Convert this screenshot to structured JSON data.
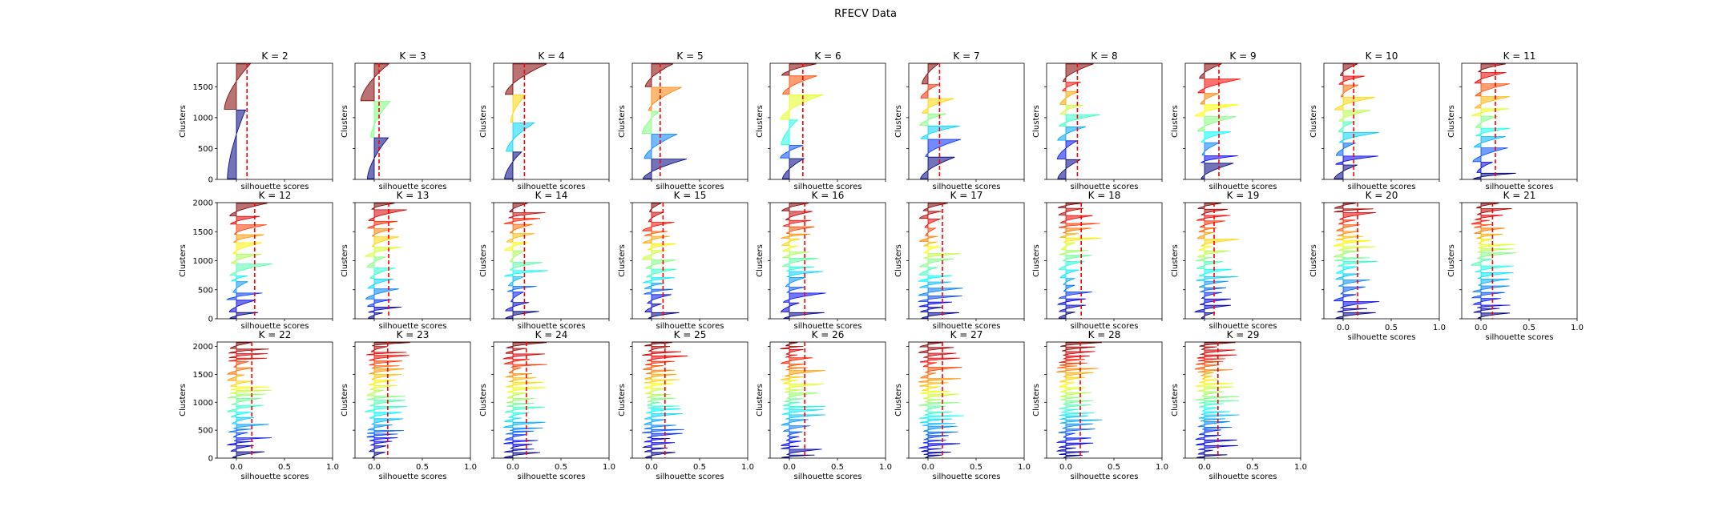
{
  "figure": {
    "suptitle": "RFECV Data"
  },
  "chart_data": {
    "type": "area",
    "description_kind": "silhouette plot grid",
    "xlabel": "silhouette scores",
    "ylabel": "Clusters",
    "xlim": [
      -0.2,
      1.0
    ],
    "x_ticks": [
      "0.0",
      "0.5",
      "1.0"
    ],
    "x_tick_values": [
      0.0,
      0.5,
      1.0
    ],
    "panels": [
      {
        "k": 2,
        "title": "K = 2",
        "ymax": 1880,
        "y_ticks": [
          0,
          500,
          1000,
          1500
        ],
        "mean_score": 0.11
      },
      {
        "k": 3,
        "title": "K = 3",
        "ymax": 1880,
        "y_ticks": [
          0,
          500,
          1000,
          1500
        ],
        "mean_score": 0.05
      },
      {
        "k": 4,
        "title": "K = 4",
        "ymax": 1880,
        "y_ticks": [
          0,
          500,
          1000,
          1500
        ],
        "mean_score": 0.12
      },
      {
        "k": 5,
        "title": "K = 5",
        "ymax": 1880,
        "y_ticks": [
          0,
          500,
          1000,
          1500
        ],
        "mean_score": 0.09
      },
      {
        "k": 6,
        "title": "K = 6",
        "ymax": 1880,
        "y_ticks": [
          0,
          500,
          1000,
          1500
        ],
        "mean_score": 0.14
      },
      {
        "k": 7,
        "title": "K = 7",
        "ymax": 1880,
        "y_ticks": [
          0,
          500,
          1000,
          1500
        ],
        "mean_score": 0.12
      },
      {
        "k": 8,
        "title": "K = 8",
        "ymax": 1880,
        "y_ticks": [
          0,
          500,
          1000,
          1500
        ],
        "mean_score": 0.12
      },
      {
        "k": 9,
        "title": "K = 9",
        "ymax": 1880,
        "y_ticks": [
          0,
          500,
          1000,
          1500
        ],
        "mean_score": 0.15
      },
      {
        "k": 10,
        "title": "K = 10",
        "ymax": 1880,
        "y_ticks": [
          0,
          500,
          1000,
          1500
        ],
        "mean_score": 0.11
      },
      {
        "k": 11,
        "title": "K = 11",
        "ymax": 1880,
        "y_ticks": [
          0,
          500,
          1000,
          1500
        ],
        "mean_score": 0.15
      },
      {
        "k": 12,
        "title": "K = 12",
        "ymax": 2000,
        "y_ticks": [
          0,
          500,
          1000,
          1500,
          2000
        ],
        "mean_score": 0.19
      },
      {
        "k": 13,
        "title": "K = 13",
        "ymax": 2000,
        "y_ticks": [
          0,
          500,
          1000,
          1500,
          2000
        ],
        "mean_score": 0.15
      },
      {
        "k": 14,
        "title": "K = 14",
        "ymax": 2000,
        "y_ticks": [
          0,
          500,
          1000,
          1500,
          2000
        ],
        "mean_score": 0.12
      },
      {
        "k": 15,
        "title": "K = 15",
        "ymax": 2000,
        "y_ticks": [
          0,
          500,
          1000,
          1500,
          2000
        ],
        "mean_score": 0.12
      },
      {
        "k": 16,
        "title": "K = 16",
        "ymax": 2000,
        "y_ticks": [
          0,
          500,
          1000,
          1500,
          2000
        ],
        "mean_score": 0.16
      },
      {
        "k": 17,
        "title": "K = 17",
        "ymax": 2000,
        "y_ticks": [
          0,
          500,
          1000,
          1500,
          2000
        ],
        "mean_score": 0.15
      },
      {
        "k": 18,
        "title": "K = 18",
        "ymax": 2000,
        "y_ticks": [
          0,
          500,
          1000,
          1500,
          2000
        ],
        "mean_score": 0.16
      },
      {
        "k": 19,
        "title": "K = 19",
        "ymax": 2000,
        "y_ticks": [
          0,
          500,
          1000,
          1500,
          2000
        ],
        "mean_score": 0.1
      },
      {
        "k": 20,
        "title": "K = 20",
        "ymax": 2000,
        "y_ticks": [
          0,
          500,
          1000,
          1500,
          2000
        ],
        "mean_score": 0.15
      },
      {
        "k": 21,
        "title": "K = 21",
        "ymax": 2000,
        "y_ticks": [
          0,
          500,
          1000,
          1500,
          2000
        ],
        "mean_score": 0.12
      },
      {
        "k": 22,
        "title": "K = 22",
        "ymax": 2080,
        "y_ticks": [
          0,
          500,
          1000,
          1500,
          2000
        ],
        "mean_score": 0.16
      },
      {
        "k": 23,
        "title": "K = 23",
        "ymax": 2080,
        "y_ticks": [
          0,
          500,
          1000,
          1500,
          2000
        ],
        "mean_score": 0.14
      },
      {
        "k": 24,
        "title": "K = 24",
        "ymax": 2080,
        "y_ticks": [
          0,
          500,
          1000,
          1500,
          2000
        ],
        "mean_score": 0.14
      },
      {
        "k": 25,
        "title": "K = 25",
        "ymax": 2080,
        "y_ticks": [
          0,
          500,
          1000,
          1500,
          2000
        ],
        "mean_score": 0.14
      },
      {
        "k": 26,
        "title": "K = 26",
        "ymax": 2080,
        "y_ticks": [
          0,
          500,
          1000,
          1500,
          2000
        ],
        "mean_score": 0.16
      },
      {
        "k": 27,
        "title": "K = 27",
        "ymax": 2080,
        "y_ticks": [
          0,
          500,
          1000,
          1500,
          2000
        ],
        "mean_score": 0.15
      },
      {
        "k": 28,
        "title": "K = 28",
        "ymax": 2080,
        "y_ticks": [
          0,
          500,
          1000,
          1500,
          2000
        ],
        "mean_score": 0.15
      },
      {
        "k": 29,
        "title": "K = 29",
        "ymax": 2080,
        "y_ticks": [
          0,
          500,
          1000,
          1500,
          2000
        ],
        "mean_score": 0.14
      }
    ],
    "grid": false,
    "mean_line_color": "#ff0000",
    "colormap": "jet"
  }
}
